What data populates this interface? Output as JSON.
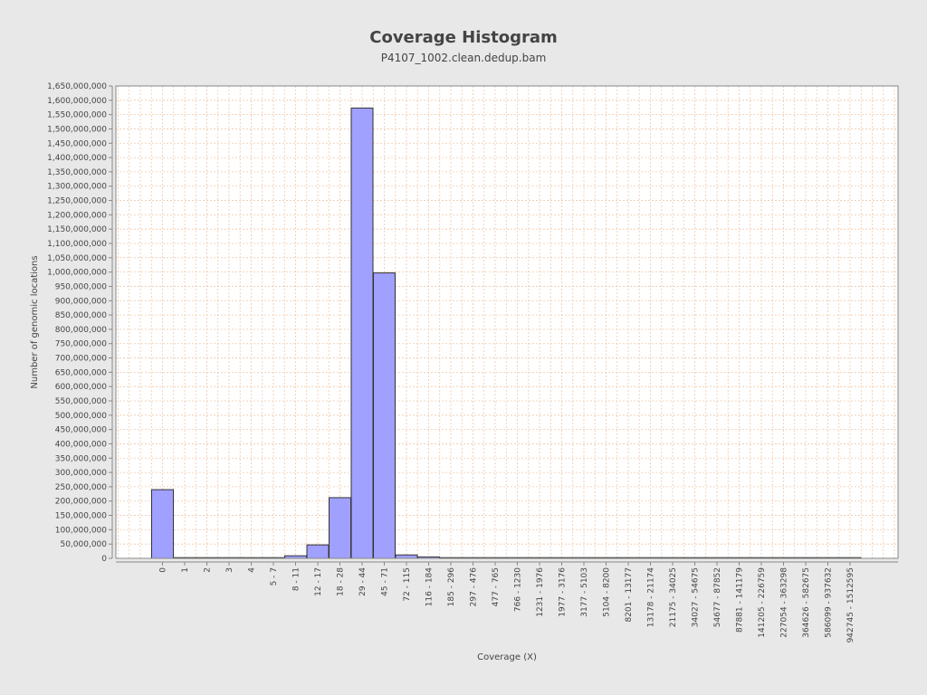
{
  "chart_data": {
    "type": "bar",
    "title": "Coverage Histogram",
    "subtitle": "P4107_1002.clean.dedup.bam",
    "xlabel": "Coverage (X)",
    "ylabel": "Number of genomic locations",
    "ylim": [
      0,
      1650000000
    ],
    "ytick_step": 50000000,
    "grid": true,
    "legend": "none",
    "bar_color": "#a0a0ff",
    "bar_edge_color": "#333333",
    "grid_color": "#f0c8a8",
    "categories": [
      "0",
      "1",
      "2",
      "3",
      "4",
      "5 - 7",
      "8 - 11",
      "12 - 17",
      "18 - 28",
      "29 - 44",
      "45 - 71",
      "72 - 115",
      "116 - 184",
      "185 - 296",
      "297 - 476",
      "477 - 765",
      "766 - 1230",
      "1231 - 1976",
      "1977 - 3176",
      "3177 - 5103",
      "5104 - 8200",
      "8201 - 13177",
      "13178 - 21174",
      "21175 - 34025",
      "34027 - 54675",
      "54677 - 87852",
      "87881 - 141179",
      "141205 - 226759",
      "227054 - 363298",
      "364626 - 582675",
      "586099 - 937632",
      "942745 - 1512595"
    ],
    "values": [
      240000000,
      500000,
      400000,
      300000,
      300000,
      2000000,
      9000000,
      47000000,
      212000000,
      1573000000,
      997000000,
      12000000,
      5000000,
      2500000,
      1500000,
      800000,
      500000,
      300000,
      200000,
      150000,
      100000,
      80000,
      60000,
      50000,
      40000,
      30000,
      20000,
      15000,
      10000,
      8000,
      5000,
      3000
    ]
  }
}
